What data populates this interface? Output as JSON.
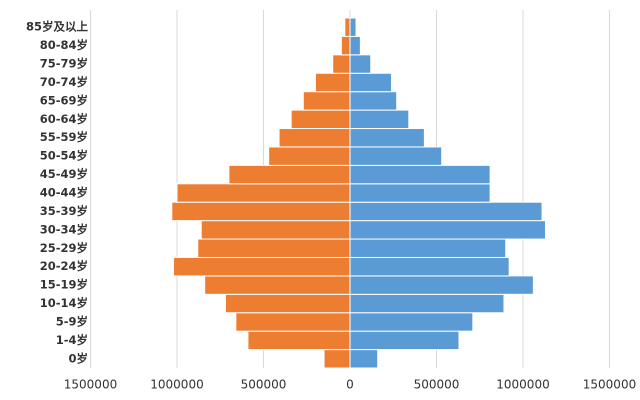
{
  "chart_data": {
    "type": "bar",
    "categories": [
      "0岁",
      "1-4岁",
      "5-9岁",
      "10-14岁",
      "15-19岁",
      "20-24岁",
      "25-29岁",
      "30-34岁",
      "35-39岁",
      "40-44岁",
      "45-49岁",
      "50-54岁",
      "55-59岁",
      "60-64岁",
      "65-69岁",
      "70-74岁",
      "75-79岁",
      "80-84岁",
      "85岁及以上"
    ],
    "series": [
      {
        "color": "#ED7D31",
        "values": [
          -150000,
          -590000,
          -660000,
          -720000,
          -840000,
          -1020000,
          -880000,
          -860000,
          -1030000,
          -1000000,
          -700000,
          -470000,
          -410000,
          -340000,
          -270000,
          -200000,
          -100000,
          -50000,
          -30000
        ]
      },
      {
        "color": "#5B9BD5",
        "values": [
          160000,
          630000,
          710000,
          890000,
          1060000,
          920000,
          900000,
          1130000,
          1110000,
          810000,
          810000,
          530000,
          430000,
          340000,
          270000,
          240000,
          120000,
          60000,
          35000
        ]
      }
    ],
    "xlim": [
      -1500000,
      1500000
    ],
    "xticks": [
      {
        "value": -1500000,
        "label": "1500000"
      },
      {
        "value": -1000000,
        "label": "1000000"
      },
      {
        "value": -500000,
        "label": "500000"
      },
      0,
      500000,
      1000000,
      1500000
    ],
    "grid": true
  }
}
